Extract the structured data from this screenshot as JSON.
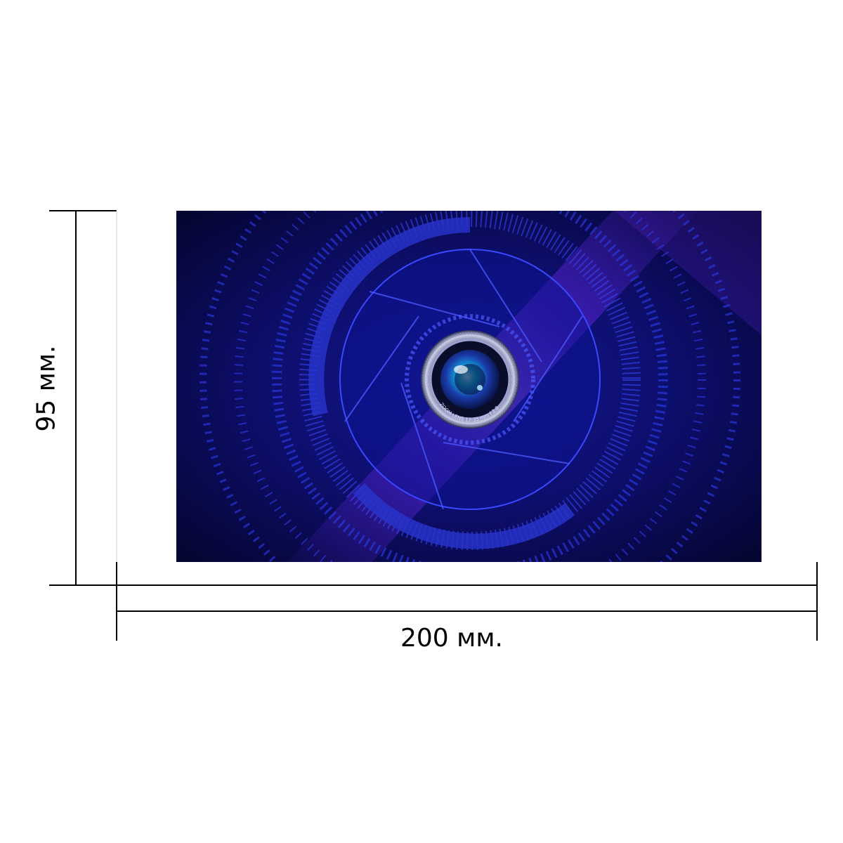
{
  "dimensions": {
    "width_label": "200 мм.",
    "height_label": "95 мм."
  },
  "artwork": {
    "lens_text": "ZOOM LENS 17-35 mm f 2.8",
    "colors": {
      "background_dark": "#0a0a3a",
      "glow": "#7a2cff",
      "ring": "#1e2bd6",
      "lens_core": "#0fb0e0"
    }
  }
}
